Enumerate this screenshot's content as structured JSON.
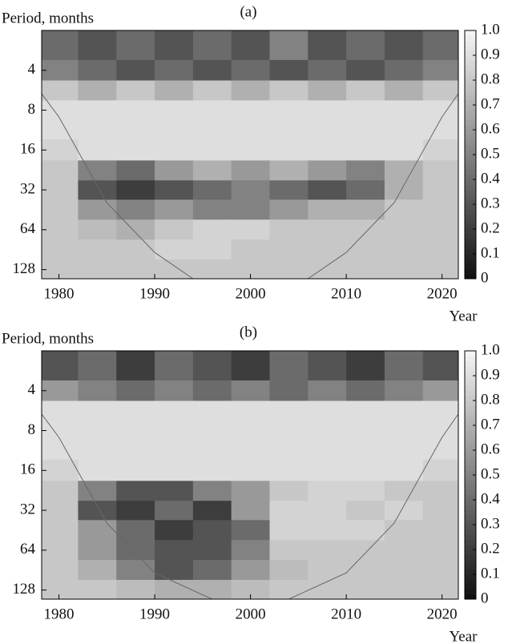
{
  "chart_data": [
    {
      "type": "heatmap",
      "title": "(a)",
      "ylabel": "Period, months",
      "xlabel": "Year",
      "x": [
        1980,
        1984,
        1988,
        1992,
        1996,
        2000,
        2004,
        2008,
        2012,
        2016,
        2020
      ],
      "y": [
        2.8,
        4,
        5.7,
        8,
        11,
        16,
        23,
        32,
        45,
        64,
        90,
        128
      ],
      "z": [
        [
          0.4,
          0.3,
          0.4,
          0.3,
          0.4,
          0.3,
          0.5,
          0.3,
          0.4,
          0.3,
          0.4
        ],
        [
          0.5,
          0.4,
          0.3,
          0.4,
          0.3,
          0.4,
          0.3,
          0.4,
          0.3,
          0.4,
          0.5
        ],
        [
          0.8,
          0.7,
          0.8,
          0.7,
          0.8,
          0.7,
          0.8,
          0.7,
          0.8,
          0.7,
          0.8
        ],
        [
          0.9,
          0.9,
          0.9,
          0.9,
          0.9,
          0.9,
          0.9,
          0.9,
          0.9,
          0.9,
          0.9
        ],
        [
          0.9,
          0.9,
          0.9,
          0.9,
          0.9,
          0.9,
          0.9,
          0.9,
          0.9,
          0.9,
          0.9
        ],
        [
          0.85,
          0.9,
          0.9,
          0.9,
          0.9,
          0.9,
          0.9,
          0.9,
          0.9,
          0.9,
          0.85
        ],
        [
          0.8,
          0.5,
          0.4,
          0.6,
          0.7,
          0.6,
          0.7,
          0.6,
          0.5,
          0.7,
          0.8
        ],
        [
          0.8,
          0.3,
          0.2,
          0.3,
          0.4,
          0.5,
          0.4,
          0.3,
          0.4,
          0.7,
          0.8
        ],
        [
          0.8,
          0.6,
          0.5,
          0.6,
          0.5,
          0.5,
          0.6,
          0.7,
          0.7,
          0.8,
          0.8
        ],
        [
          0.8,
          0.75,
          0.7,
          0.8,
          0.85,
          0.85,
          0.8,
          0.8,
          0.8,
          0.8,
          0.8
        ],
        [
          0.8,
          0.8,
          0.8,
          0.85,
          0.85,
          0.8,
          0.8,
          0.8,
          0.8,
          0.8,
          0.8
        ],
        [
          0.8,
          0.8,
          0.8,
          0.8,
          0.8,
          0.8,
          0.8,
          0.8,
          0.8,
          0.8,
          0.8
        ]
      ],
      "coi": {
        "x": [
          1978.2,
          1980,
          1985,
          1990,
          1994,
          2006,
          2010,
          2015,
          2020,
          2021.7
        ],
        "y": [
          6,
          9,
          40,
          95,
          150,
          150,
          95,
          40,
          9,
          6
        ]
      },
      "xlim": [
        1978.2,
        2021.7
      ],
      "xticks": [
        1980,
        1990,
        2000,
        2010,
        2020
      ],
      "ylim": [
        2,
        150
      ],
      "yticks": [
        4,
        8,
        16,
        32,
        64,
        128
      ],
      "log_y": true,
      "clim": [
        0,
        1
      ],
      "cticks": [
        {
          "value": 1,
          "label": "1.0"
        },
        0.9,
        0.8,
        0.7,
        0.6,
        0.5,
        0.4,
        0.3,
        0.2,
        0.1,
        0
      ]
    },
    {
      "type": "heatmap",
      "title": "(b)",
      "ylabel": "Period, months",
      "xlabel": "Year",
      "x": [
        1980,
        1984,
        1988,
        1992,
        1996,
        2000,
        2004,
        2008,
        2012,
        2016,
        2020
      ],
      "y": [
        2.8,
        4,
        5.7,
        8,
        11,
        16,
        23,
        32,
        45,
        64,
        90,
        128
      ],
      "z": [
        [
          0.3,
          0.4,
          0.2,
          0.4,
          0.3,
          0.2,
          0.4,
          0.3,
          0.2,
          0.4,
          0.3
        ],
        [
          0.6,
          0.5,
          0.4,
          0.5,
          0.4,
          0.5,
          0.4,
          0.5,
          0.4,
          0.5,
          0.6
        ],
        [
          0.9,
          0.9,
          0.9,
          0.9,
          0.9,
          0.9,
          0.9,
          0.9,
          0.9,
          0.9,
          0.9
        ],
        [
          0.9,
          0.9,
          0.9,
          0.9,
          0.9,
          0.9,
          0.9,
          0.9,
          0.9,
          0.9,
          0.9
        ],
        [
          0.9,
          0.9,
          0.9,
          0.9,
          0.9,
          0.9,
          0.9,
          0.9,
          0.9,
          0.9,
          0.9
        ],
        [
          0.85,
          0.9,
          0.9,
          0.9,
          0.9,
          0.9,
          0.9,
          0.9,
          0.9,
          0.9,
          0.85
        ],
        [
          0.8,
          0.5,
          0.3,
          0.3,
          0.5,
          0.6,
          0.8,
          0.85,
          0.85,
          0.8,
          0.8
        ],
        [
          0.8,
          0.3,
          0.2,
          0.4,
          0.2,
          0.6,
          0.85,
          0.85,
          0.8,
          0.85,
          0.8
        ],
        [
          0.8,
          0.6,
          0.4,
          0.2,
          0.3,
          0.4,
          0.85,
          0.85,
          0.85,
          0.8,
          0.8
        ],
        [
          0.8,
          0.6,
          0.4,
          0.3,
          0.3,
          0.5,
          0.8,
          0.8,
          0.8,
          0.8,
          0.8
        ],
        [
          0.8,
          0.7,
          0.5,
          0.3,
          0.4,
          0.6,
          0.75,
          0.8,
          0.8,
          0.8,
          0.8
        ],
        [
          0.8,
          0.8,
          0.75,
          0.7,
          0.7,
          0.75,
          0.8,
          0.8,
          0.8,
          0.8,
          0.8
        ]
      ],
      "coi": {
        "x": [
          1978.2,
          1980,
          1985,
          1990,
          1996,
          2004,
          2010,
          2015,
          2020,
          2021.7
        ],
        "y": [
          6,
          9,
          40,
          95,
          150,
          150,
          95,
          40,
          9,
          6
        ]
      },
      "xlim": [
        1978.2,
        2021.7
      ],
      "xticks": [
        1980,
        1990,
        2000,
        2010,
        2020
      ],
      "ylim": [
        2,
        150
      ],
      "yticks": [
        4,
        8,
        16,
        32,
        64,
        128
      ],
      "log_y": true,
      "clim": [
        0,
        1
      ],
      "cticks": [
        {
          "value": 1,
          "label": "1.0"
        },
        0.9,
        0.8,
        0.7,
        0.6,
        0.5,
        0.4,
        0.3,
        0.2,
        0.1,
        0
      ]
    }
  ]
}
